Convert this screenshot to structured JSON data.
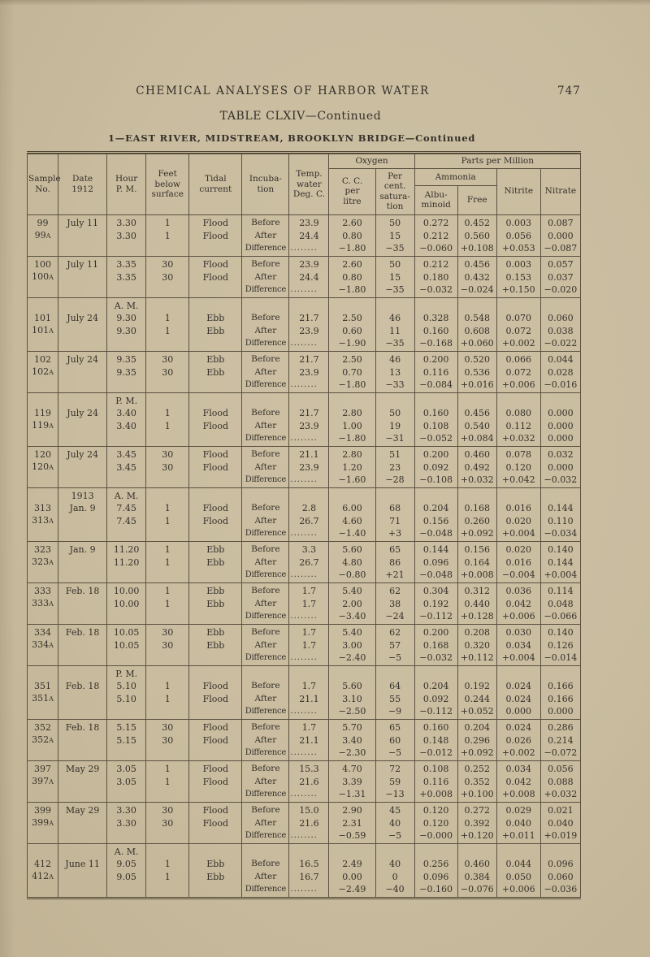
{
  "page": {
    "running_head": "CHEMICAL ANALYSES OF HARBOR WATER",
    "page_number": "747",
    "table_title": "TABLE CLXIV—Continued",
    "table_subtitle": "1—EAST RIVER, MIDSTREAM, BROOKLYN BRIDGE—Continued"
  },
  "table": {
    "headers": {
      "sample_no": "Sample\nNo.",
      "date": "Date\n1912",
      "hour": "Hour\nP. M.",
      "feet": "Feet\nbelow\nsurface",
      "tidal": "Tidal\ncurrent",
      "incubation": "Incuba-\ntion",
      "temp": "Temp.\nwater\nDeg. C.",
      "oxygen_group": "Oxygen",
      "cc_litre": "C. C.\nper\nlitre",
      "pct_saturation": "Per cent.\nsatura-\ntion",
      "ppm_group": "Parts per Million",
      "ammonia_group": "Ammonia",
      "albuminoid": "Albu-\nminoid",
      "free": "Free",
      "nitrite": "Nitrite",
      "nitrate": "Nitrate"
    },
    "incubation_labels": {
      "before": "Before",
      "after": "After",
      "difference": "Difference"
    },
    "diff_leader_dots": "........",
    "sample_suffix": "A",
    "groups": [
      {
        "no": "99",
        "date": "July 11",
        "year_label": "",
        "hour": "3.30",
        "hour_label": "",
        "feet": "1",
        "tidal": "Flood",
        "before": {
          "temp": "23.9",
          "cc": "2.60",
          "sat": "50",
          "alb": "0.272",
          "free": "0.452",
          "nitrite": "0.003",
          "nitrate": "0.087"
        },
        "after": {
          "temp": "24.4",
          "cc": "0.80",
          "sat": "15",
          "alb": "0.212",
          "free": "0.560",
          "nitrite": "0.056",
          "nitrate": "0.000"
        },
        "diff": {
          "cc": "−1.80",
          "sat": "−35",
          "alb": "−0.060",
          "free": "+0.108",
          "nitrite": "+0.053",
          "nitrate": "−0.087"
        }
      },
      {
        "no": "100",
        "date": "July 11",
        "year_label": "",
        "hour": "3.35",
        "hour_label": "",
        "feet": "30",
        "tidal": "Flood",
        "before": {
          "temp": "23.9",
          "cc": "2.60",
          "sat": "50",
          "alb": "0.212",
          "free": "0.456",
          "nitrite": "0.003",
          "nitrate": "0.057"
        },
        "after": {
          "temp": "24.4",
          "cc": "0.80",
          "sat": "15",
          "alb": "0.180",
          "free": "0.432",
          "nitrite": "0.153",
          "nitrate": "0.037"
        },
        "diff": {
          "cc": "−1.80",
          "sat": "−35",
          "alb": "−0.032",
          "free": "−0.024",
          "nitrite": "+0.150",
          "nitrate": "−0.020"
        }
      },
      {
        "no": "101",
        "date": "July 24",
        "year_label": "",
        "hour": "9.30",
        "hour_label": "A. M.",
        "feet": "1",
        "tidal": "Ebb",
        "before": {
          "temp": "21.7",
          "cc": "2.50",
          "sat": "46",
          "alb": "0.328",
          "free": "0.548",
          "nitrite": "0.070",
          "nitrate": "0.060"
        },
        "after": {
          "temp": "23.9",
          "cc": "0.60",
          "sat": "11",
          "alb": "0.160",
          "free": "0.608",
          "nitrite": "0.072",
          "nitrate": "0.038"
        },
        "diff": {
          "cc": "−1.90",
          "sat": "−35",
          "alb": "−0.168",
          "free": "+0.060",
          "nitrite": "+0.002",
          "nitrate": "−0.022"
        }
      },
      {
        "no": "102",
        "date": "July 24",
        "year_label": "",
        "hour": "9.35",
        "hour_label": "",
        "feet": "30",
        "tidal": "Ebb",
        "before": {
          "temp": "21.7",
          "cc": "2.50",
          "sat": "46",
          "alb": "0.200",
          "free": "0.520",
          "nitrite": "0.066",
          "nitrate": "0.044"
        },
        "after": {
          "temp": "23.9",
          "cc": "0.70",
          "sat": "13",
          "alb": "0.116",
          "free": "0.536",
          "nitrite": "0.072",
          "nitrate": "0.028"
        },
        "diff": {
          "cc": "−1.80",
          "sat": "−33",
          "alb": "−0.084",
          "free": "+0.016",
          "nitrite": "+0.006",
          "nitrate": "−0.016"
        }
      },
      {
        "no": "119",
        "date": "July 24",
        "year_label": "",
        "hour": "3.40",
        "hour_label": "P. M.",
        "feet": "1",
        "tidal": "Flood",
        "before": {
          "temp": "21.7",
          "cc": "2.80",
          "sat": "50",
          "alb": "0.160",
          "free": "0.456",
          "nitrite": "0.080",
          "nitrate": "0.000"
        },
        "after": {
          "temp": "23.9",
          "cc": "1.00",
          "sat": "19",
          "alb": "0.108",
          "free": "0.540",
          "nitrite": "0.112",
          "nitrate": "0.000"
        },
        "diff": {
          "cc": "−1.80",
          "sat": "−31",
          "alb": "−0.052",
          "free": "+0.084",
          "nitrite": "+0.032",
          "nitrate": "0.000"
        }
      },
      {
        "no": "120",
        "date": "July 24",
        "year_label": "",
        "hour": "3.45",
        "hour_label": "",
        "feet": "30",
        "tidal": "Flood",
        "before": {
          "temp": "21.1",
          "cc": "2.80",
          "sat": "51",
          "alb": "0.200",
          "free": "0.460",
          "nitrite": "0.078",
          "nitrate": "0.032"
        },
        "after": {
          "temp": "23.9",
          "cc": "1.20",
          "sat": "23",
          "alb": "0.092",
          "free": "0.492",
          "nitrite": "0.120",
          "nitrate": "0.000"
        },
        "diff": {
          "cc": "−1.60",
          "sat": "−28",
          "alb": "−0.108",
          "free": "+0.032",
          "nitrite": "+0.042",
          "nitrate": "−0.032"
        }
      },
      {
        "no": "313",
        "date": "Jan. 9",
        "year_label": "1913",
        "hour": "7.45",
        "hour_label": "A. M.",
        "feet": "1",
        "tidal": "Flood",
        "before": {
          "temp": "2.8",
          "cc": "6.00",
          "sat": "68",
          "alb": "0.204",
          "free": "0.168",
          "nitrite": "0.016",
          "nitrate": "0.144"
        },
        "after": {
          "temp": "26.7",
          "cc": "4.60",
          "sat": "71",
          "alb": "0.156",
          "free": "0.260",
          "nitrite": "0.020",
          "nitrate": "0.110"
        },
        "diff": {
          "cc": "−1.40",
          "sat": "+3",
          "alb": "−0.048",
          "free": "+0.092",
          "nitrite": "+0.004",
          "nitrate": "−0.034"
        }
      },
      {
        "no": "323",
        "date": "Jan. 9",
        "year_label": "",
        "hour": "11.20",
        "hour_label": "",
        "feet": "1",
        "tidal": "Ebb",
        "before": {
          "temp": "3.3",
          "cc": "5.60",
          "sat": "65",
          "alb": "0.144",
          "free": "0.156",
          "nitrite": "0.020",
          "nitrate": "0.140"
        },
        "after": {
          "temp": "26.7",
          "cc": "4.80",
          "sat": "86",
          "alb": "0.096",
          "free": "0.164",
          "nitrite": "0.016",
          "nitrate": "0.144"
        },
        "diff": {
          "cc": "−0.80",
          "sat": "+21",
          "alb": "−0.048",
          "free": "+0.008",
          "nitrite": "−0.004",
          "nitrate": "+0.004"
        }
      },
      {
        "no": "333",
        "date": "Feb. 18",
        "year_label": "",
        "hour": "10.00",
        "hour_label": "",
        "feet": "1",
        "tidal": "Ebb",
        "before": {
          "temp": "1.7",
          "cc": "5.40",
          "sat": "62",
          "alb": "0.304",
          "free": "0.312",
          "nitrite": "0.036",
          "nitrate": "0.114"
        },
        "after": {
          "temp": "1.7",
          "cc": "2.00",
          "sat": "38",
          "alb": "0.192",
          "free": "0.440",
          "nitrite": "0.042",
          "nitrate": "0.048"
        },
        "diff": {
          "cc": "−3.40",
          "sat": "−24",
          "alb": "−0.112",
          "free": "+0.128",
          "nitrite": "+0.006",
          "nitrate": "−0.066"
        }
      },
      {
        "no": "334",
        "date": "Feb. 18",
        "year_label": "",
        "hour": "10.05",
        "hour_label": "",
        "feet": "30",
        "tidal": "Ebb",
        "before": {
          "temp": "1.7",
          "cc": "5.40",
          "sat": "62",
          "alb": "0.200",
          "free": "0.208",
          "nitrite": "0.030",
          "nitrate": "0.140"
        },
        "after": {
          "temp": "1.7",
          "cc": "3.00",
          "sat": "57",
          "alb": "0.168",
          "free": "0.320",
          "nitrite": "0.034",
          "nitrate": "0.126"
        },
        "diff": {
          "cc": "−2.40",
          "sat": "−5",
          "alb": "−0.032",
          "free": "+0.112",
          "nitrite": "+0.004",
          "nitrate": "−0.014"
        }
      },
      {
        "no": "351",
        "date": "Feb. 18",
        "year_label": "",
        "hour": "5.10",
        "hour_label": "P. M.",
        "feet": "1",
        "tidal": "Flood",
        "before": {
          "temp": "1.7",
          "cc": "5.60",
          "sat": "64",
          "alb": "0.204",
          "free": "0.192",
          "nitrite": "0.024",
          "nitrate": "0.166"
        },
        "after": {
          "temp": "21.1",
          "cc": "3.10",
          "sat": "55",
          "alb": "0.092",
          "free": "0.244",
          "nitrite": "0.024",
          "nitrate": "0.166"
        },
        "diff": {
          "cc": "−2.50",
          "sat": "−9",
          "alb": "−0.112",
          "free": "+0.052",
          "nitrite": "0.000",
          "nitrate": "0.000"
        }
      },
      {
        "no": "352",
        "date": "Feb. 18",
        "year_label": "",
        "hour": "5.15",
        "hour_label": "",
        "feet": "30",
        "tidal": "Flood",
        "before": {
          "temp": "1.7",
          "cc": "5.70",
          "sat": "65",
          "alb": "0.160",
          "free": "0.204",
          "nitrite": "0.024",
          "nitrate": "0.286"
        },
        "after": {
          "temp": "21.1",
          "cc": "3.40",
          "sat": "60",
          "alb": "0.148",
          "free": "0.296",
          "nitrite": "0.026",
          "nitrate": "0.214"
        },
        "diff": {
          "cc": "−2.30",
          "sat": "−5",
          "alb": "−0.012",
          "free": "+0.092",
          "nitrite": "+0.002",
          "nitrate": "−0.072"
        }
      },
      {
        "no": "397",
        "date": "May 29",
        "year_label": "",
        "hour": "3.05",
        "hour_label": "",
        "feet": "1",
        "tidal": "Flood",
        "before": {
          "temp": "15.3",
          "cc": "4.70",
          "sat": "72",
          "alb": "0.108",
          "free": "0.252",
          "nitrite": "0.034",
          "nitrate": "0.056"
        },
        "after": {
          "temp": "21.6",
          "cc": "3.39",
          "sat": "59",
          "alb": "0.116",
          "free": "0.352",
          "nitrite": "0.042",
          "nitrate": "0.088"
        },
        "diff": {
          "cc": "−1.31",
          "sat": "−13",
          "alb": "+0.008",
          "free": "+0.100",
          "nitrite": "+0.008",
          "nitrate": "+0.032"
        }
      },
      {
        "no": "399",
        "date": "May 29",
        "year_label": "",
        "hour": "3.30",
        "hour_label": "",
        "feet": "30",
        "tidal": "Flood",
        "before": {
          "temp": "15.0",
          "cc": "2.90",
          "sat": "45",
          "alb": "0.120",
          "free": "0.272",
          "nitrite": "0.029",
          "nitrate": "0.021"
        },
        "after": {
          "temp": "21.6",
          "cc": "2.31",
          "sat": "40",
          "alb": "0.120",
          "free": "0.392",
          "nitrite": "0.040",
          "nitrate": "0.040"
        },
        "diff": {
          "cc": "−0.59",
          "sat": "−5",
          "alb": "−0.000",
          "free": "+0.120",
          "nitrite": "+0.011",
          "nitrate": "+0.019"
        }
      },
      {
        "no": "412",
        "date": "June 11",
        "year_label": "",
        "hour": "9.05",
        "hour_label": "A. M.",
        "feet": "1",
        "tidal": "Ebb",
        "before": {
          "temp": "16.5",
          "cc": "2.49",
          "sat": "40",
          "alb": "0.256",
          "free": "0.460",
          "nitrite": "0.044",
          "nitrate": "0.096"
        },
        "after": {
          "temp": "16.7",
          "cc": "0.00",
          "sat": "0",
          "alb": "0.096",
          "free": "0.384",
          "nitrite": "0.050",
          "nitrate": "0.060"
        },
        "diff": {
          "cc": "−2.49",
          "sat": "−40",
          "alb": "−0.160",
          "free": "−0.076",
          "nitrite": "+0.006",
          "nitrate": "−0.036"
        }
      }
    ]
  }
}
